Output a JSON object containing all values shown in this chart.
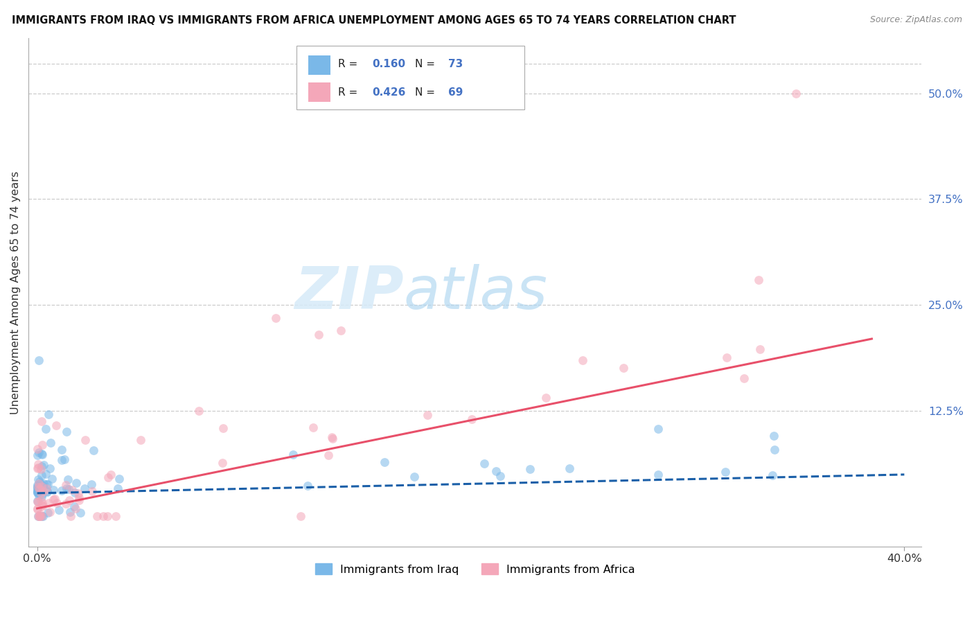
{
  "title": "IMMIGRANTS FROM IRAQ VS IMMIGRANTS FROM AFRICA UNEMPLOYMENT AMONG AGES 65 TO 74 YEARS CORRELATION CHART",
  "source": "Source: ZipAtlas.com",
  "ylabel": "Unemployment Among Ages 65 to 74 years",
  "right_ytick_vals": [
    0.5,
    0.375,
    0.25,
    0.125
  ],
  "right_ytick_labels": [
    "50.0%",
    "37.5%",
    "25.0%",
    "12.5%"
  ],
  "xlim": [
    -0.004,
    0.408
  ],
  "ylim": [
    -0.035,
    0.565
  ],
  "watermark1": "ZIP",
  "watermark2": "atlas",
  "iraq_color": "#7ab8e8",
  "iraq_line_color": "#1a5fa8",
  "africa_color": "#f4a7b9",
  "africa_line_color": "#e8506a",
  "background_color": "#ffffff",
  "grid_color": "#cccccc",
  "scatter_alpha": 0.55,
  "scatter_size": 85,
  "iraq_R": "0.160",
  "iraq_N": "73",
  "africa_R": "0.426",
  "africa_N": "69",
  "iraq_intercept": 0.028,
  "iraq_slope": 0.055,
  "africa_intercept": 0.01,
  "africa_slope": 0.52
}
